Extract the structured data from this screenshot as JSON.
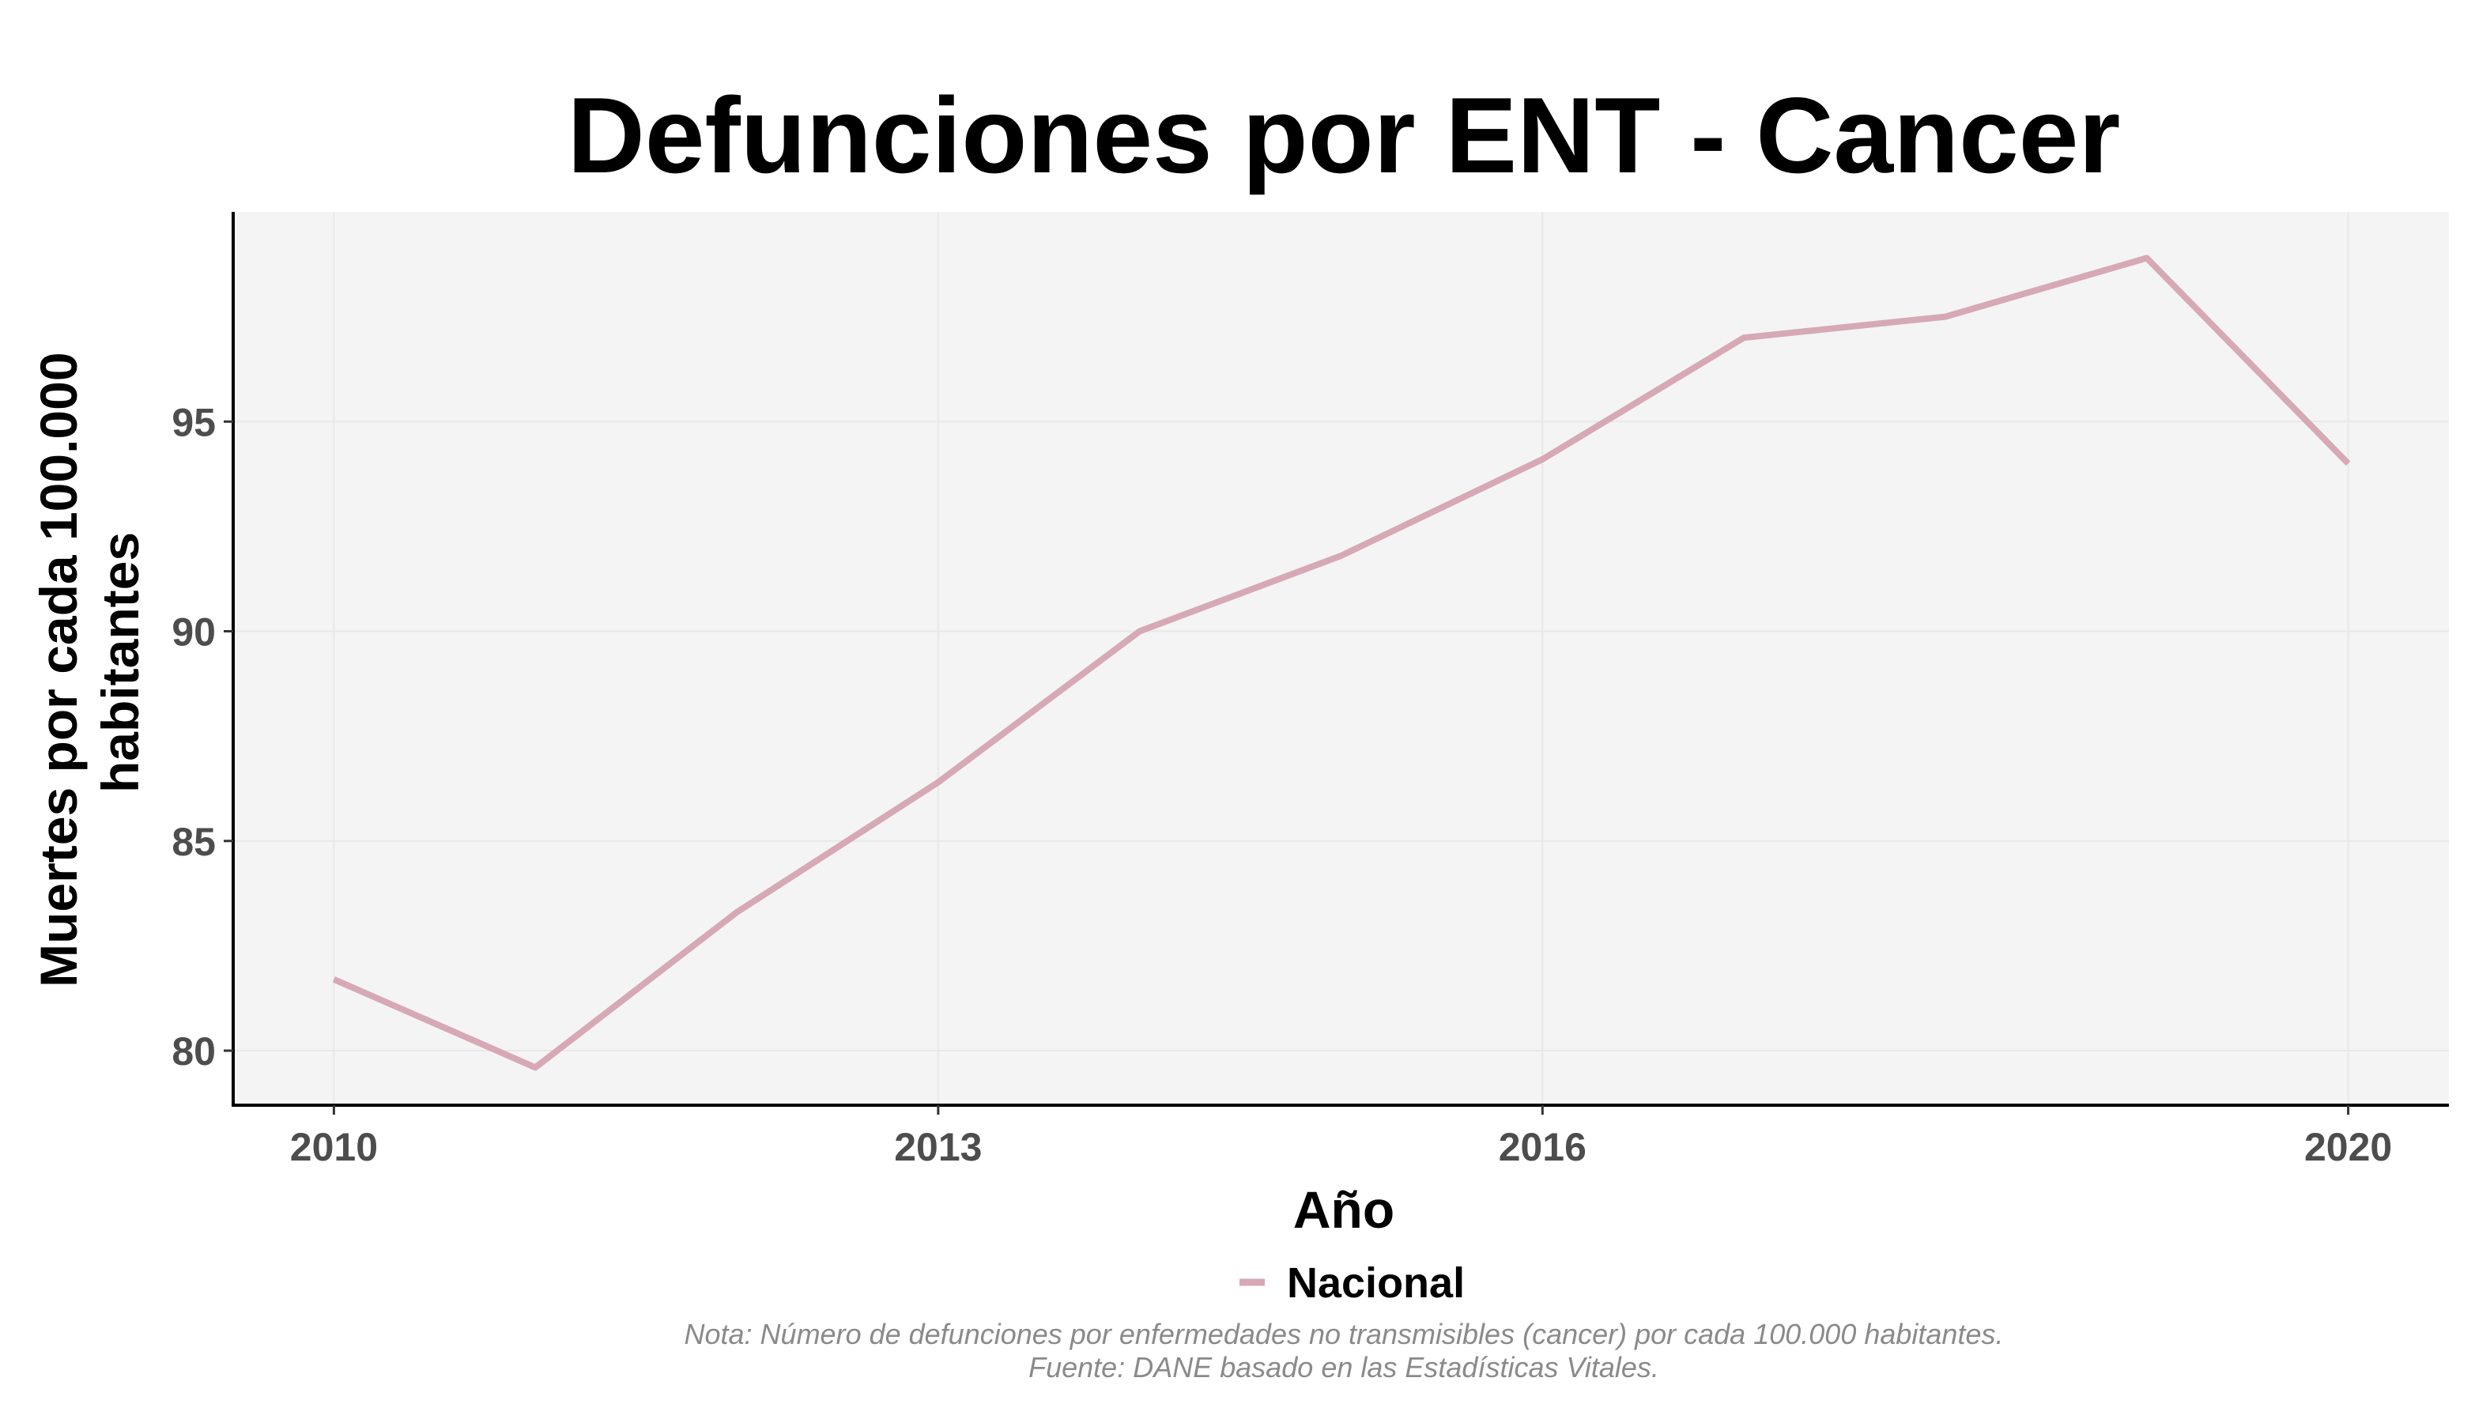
{
  "chart_data": {
    "type": "line",
    "title": "Defunciones por ENT - Cancer",
    "xlabel": "Año",
    "ylabel_lines": [
      "Muertes por cada 100.000",
      "habitantes"
    ],
    "x": [
      2010,
      2011,
      2012,
      2013,
      2014,
      2015,
      2016,
      2017,
      2018,
      2019,
      2020
    ],
    "series": [
      {
        "name": "Nacional",
        "color": "#d6a9b5",
        "values": [
          81.7,
          79.6,
          83.3,
          86.4,
          90.0,
          91.8,
          94.1,
          97.0,
          97.5,
          98.9,
          94.0
        ]
      }
    ],
    "xticks": [
      2010,
      2013,
      2016,
      2020
    ],
    "xtick_labels": [
      "2010",
      "2013",
      "2016",
      "2020"
    ],
    "yticks": [
      80,
      85,
      90,
      95
    ],
    "ytick_labels": [
      "80",
      "85",
      "90",
      "95"
    ],
    "xlim": [
      2009.5,
      2020.5
    ],
    "ylim": [
      78.7,
      100.0
    ],
    "grid": true,
    "panel_background": "#f4f4f4",
    "legend_position": "bottom",
    "caption_lines": [
      "Nota: Número de defunciones por enfermedades no transmisibles (cancer) por cada 100.000 habitantes.",
      "Fuente: DANE basado en las Estadísticas Vitales."
    ]
  }
}
